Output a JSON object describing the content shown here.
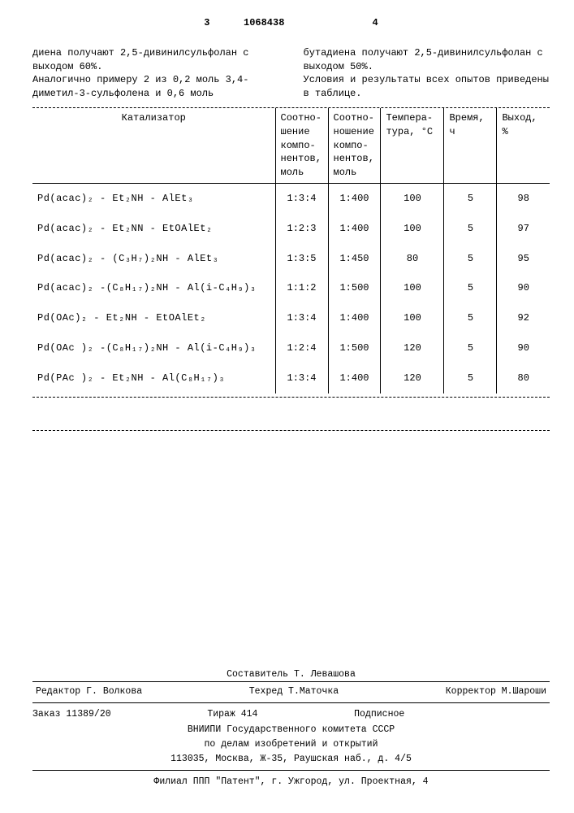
{
  "header": {
    "page_left": "3",
    "doc_id": "1068438",
    "page_right": "4"
  },
  "intro": {
    "left_col": "диена получают 2,5-дивинилсульфолан с выходом 60%.\n    Аналогично примеру 2 из 0,2 моль 3,4-диметил-3-сульфолена и 0,6 моль",
    "right_col": "бутадиена получают 2,5-дивинилсульфолан с выходом 50%.\n    Условия и результаты всех опытов приведены в таблице."
  },
  "table": {
    "headers": {
      "catalyst": "Катализатор",
      "ratio1": "Соотно-\nшение\nкомпо-\nнентов,\nмоль",
      "ratio2": "Соотно-\nношение\nкомпо-\nнентов,\nмоль",
      "temp": "Темпера-\nтура, °С",
      "time": "Время,\nч",
      "yield": "Выход,\n%"
    },
    "rows": [
      {
        "catalyst": "Pd(acac)₂ - Et₂NH - AlEt₃",
        "r1": "1:3:4",
        "r2": "1:400",
        "temp": "100",
        "time": "5",
        "yield": "98"
      },
      {
        "catalyst": "Pd(acac)₂ - Et₂NN - EtOAlEt₂",
        "r1": "1:2:3",
        "r2": "1:400",
        "temp": "100",
        "time": "5",
        "yield": "97"
      },
      {
        "catalyst": "Pd(acac)₂ - (C₃H₇)₂NH - AlEt₃",
        "r1": "1:3:5",
        "r2": "1:450",
        "temp": "80",
        "time": "5",
        "yield": "95"
      },
      {
        "catalyst": "Pd(acac)₂ -(C₈H₁₇)₂NH - Al(i-C₄H₉)₃",
        "r1": "1:1:2",
        "r2": "1:500",
        "temp": "100",
        "time": "5",
        "yield": "90"
      },
      {
        "catalyst": "Pd(OAc)₂ - Et₂NH - EtOAlEt₂",
        "r1": "1:3:4",
        "r2": "1:400",
        "temp": "100",
        "time": "5",
        "yield": "92"
      },
      {
        "catalyst": "Pd(OAc )₂ -(C₈H₁₇)₂NH - Al(i-C₄H₉)₃",
        "r1": "1:2:4",
        "r2": "1:500",
        "temp": "120",
        "time": "5",
        "yield": "90"
      },
      {
        "catalyst": "Pd(PAc )₂ - Et₂NH - Al(C₈H₁₇)₃",
        "r1": "1:3:4",
        "r2": "1:400",
        "temp": "120",
        "time": "5",
        "yield": "80"
      }
    ]
  },
  "footer": {
    "line1_left": "",
    "compiler": "Составитель Т. Левашова",
    "editor": "Редактор Г. Волкова",
    "techred": "Техред Т.Маточка",
    "corrector": "Корректор М.Шароши",
    "order": "Заказ 11389/20",
    "tirage": "Тираж  414",
    "signed": "Подписное",
    "org1": "ВНИИПИ Государственного комитета СССР",
    "org2": "по делам изобретений и открытий",
    "addr1": "113035, Москва, Ж-35, Раушская наб., д. 4/5",
    "branch": "Филиал ППП \"Патент\", г. Ужгород, ул. Проектная, 4"
  }
}
